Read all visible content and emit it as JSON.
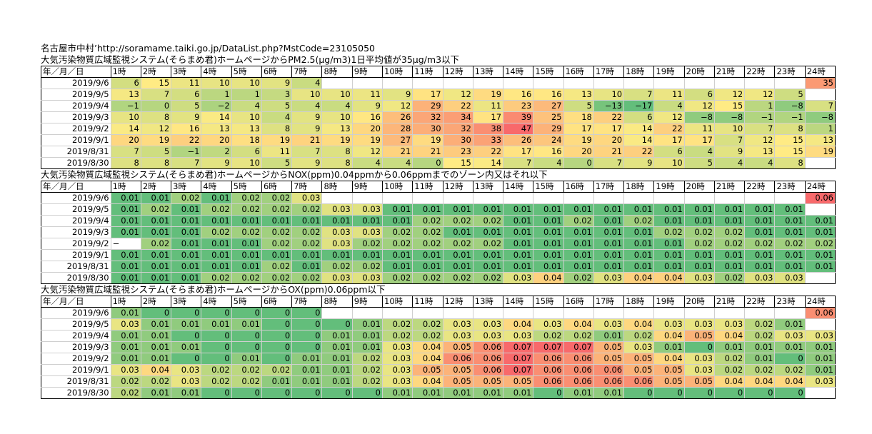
{
  "header": {
    "source_line": "名古屋市中村’http://soramame.taiki.go.jp/DataList.php?MstCode=23105050"
  },
  "hours": [
    "1時",
    "2時",
    "3時",
    "4時",
    "5時",
    "6時",
    "7時",
    "8時",
    "9時",
    "10時",
    "11時",
    "12時",
    "13時",
    "14時",
    "15時",
    "16時",
    "17時",
    "18時",
    "19時",
    "20時",
    "21時",
    "22時",
    "23時",
    "24時"
  ],
  "date_header": "年／月／日",
  "tables": [
    {
      "title": "大気汚染物質広域監視システム(そらまめ君)ホームページからPM2.5(μg/m3)1日平均値が35μg/m3以下",
      "kind": "pm",
      "rows": [
        {
          "date": "2019/9/6",
          "v": [
            "6",
            "15",
            "11",
            "10",
            "10",
            "9",
            "4",
            "",
            "",
            "",
            "",
            "",
            "",
            "",
            "",
            "",
            "",
            "",
            "",
            "",
            "",
            "",
            "",
            "35"
          ]
        },
        {
          "date": "2019/9/5",
          "v": [
            "13",
            "7",
            "6",
            "1",
            "1",
            "3",
            "10",
            "10",
            "11",
            "9",
            "17",
            "12",
            "19",
            "16",
            "16",
            "13",
            "10",
            "7",
            "11",
            "6",
            "12",
            "12",
            "5",
            ""
          ]
        },
        {
          "date": "2019/9/4",
          "v": [
            "−1",
            "0",
            "5",
            "−2",
            "4",
            "5",
            "4",
            "4",
            "9",
            "12",
            "29",
            "22",
            "11",
            "23",
            "27",
            "5",
            "−13",
            "−17",
            "4",
            "12",
            "15",
            "1",
            "−8",
            "7"
          ]
        },
        {
          "date": "2019/9/3",
          "v": [
            "10",
            "8",
            "9",
            "14",
            "10",
            "4",
            "9",
            "10",
            "16",
            "26",
            "32",
            "34",
            "17",
            "39",
            "25",
            "18",
            "22",
            "6",
            "12",
            "−8",
            "−8",
            "−1",
            "−1",
            "−8"
          ]
        },
        {
          "date": "2019/9/2",
          "v": [
            "14",
            "12",
            "16",
            "13",
            "13",
            "8",
            "9",
            "13",
            "20",
            "28",
            "30",
            "32",
            "38",
            "47",
            "29",
            "17",
            "17",
            "14",
            "22",
            "11",
            "10",
            "7",
            "8",
            "1"
          ]
        },
        {
          "date": "2019/9/1",
          "v": [
            "20",
            "19",
            "22",
            "20",
            "18",
            "19",
            "21",
            "19",
            "19",
            "27",
            "19",
            "30",
            "33",
            "26",
            "24",
            "19",
            "20",
            "14",
            "17",
            "17",
            "7",
            "12",
            "15",
            "13"
          ]
        },
        {
          "date": "2019/8/31",
          "v": [
            "7",
            "5",
            "−1",
            "2",
            "6",
            "11",
            "7",
            "8",
            "12",
            "21",
            "21",
            "23",
            "22",
            "17",
            "16",
            "20",
            "21",
            "22",
            "6",
            "4",
            "9",
            "13",
            "15",
            "19"
          ]
        },
        {
          "date": "2019/8/30",
          "v": [
            "8",
            "8",
            "7",
            "9",
            "10",
            "5",
            "9",
            "8",
            "4",
            "4",
            "0",
            "15",
            "14",
            "7",
            "4",
            "0",
            "7",
            "9",
            "10",
            "5",
            "4",
            "4",
            "8",
            ""
          ]
        }
      ]
    },
    {
      "title": "大気汚染物質広域監視システム(そらまめ君)ホームページからNOX(ppm)0.04ppmから0.06ppmまでのゾーン内又はそれ以下",
      "kind": "nox",
      "rows": [
        {
          "date": "2019/9/6",
          "v": [
            "0.01",
            "0.01",
            "0.02",
            "0.01",
            "0.02",
            "0.02",
            "0.03",
            "",
            "",
            "",
            "",
            "",
            "",
            "",
            "",
            "",
            "",
            "",
            "",
            "",
            "",
            "",
            "",
            "0.06"
          ]
        },
        {
          "date": "2019/9/5",
          "v": [
            "0.01",
            "0.02",
            "0.01",
            "0.02",
            "0.02",
            "0.02",
            "0.02",
            "0.03",
            "0.03",
            "0.01",
            "0.01",
            "0.01",
            "0.01",
            "0.01",
            "0.01",
            "0.01",
            "0.01",
            "0.01",
            "0.01",
            "0.01",
            "0.01",
            "0.01",
            "0.01",
            ""
          ]
        },
        {
          "date": "2019/9/4",
          "v": [
            "0.01",
            "0.01",
            "0.01",
            "0.01",
            "0.01",
            "0.01",
            "0.01",
            "0.01",
            "0.01",
            "0.01",
            "0.02",
            "0.02",
            "0.02",
            "0.01",
            "0.01",
            "0.02",
            "0.01",
            "0.02",
            "0.01",
            "0.01",
            "0.01",
            "0.01",
            "0.01",
            "0.01"
          ]
        },
        {
          "date": "2019/9/3",
          "v": [
            "0.01",
            "0.01",
            "0.01",
            "0.02",
            "0.02",
            "0.02",
            "0.02",
            "0.03",
            "0.03",
            "0.02",
            "0.02",
            "0.01",
            "0.01",
            "0.01",
            "0.01",
            "0.01",
            "0.01",
            "0.01",
            "0.02",
            "0.02",
            "0.02",
            "0.01",
            "0.01",
            "0.01"
          ]
        },
        {
          "date": "2019/9/2",
          "v": [
            "−",
            "0.02",
            "0.01",
            "0.01",
            "0.01",
            "0.02",
            "0.02",
            "0.03",
            "0.02",
            "0.02",
            "0.02",
            "0.02",
            "0.02",
            "0.01",
            "0.01",
            "0.01",
            "0.01",
            "0.01",
            "0.01",
            "0.02",
            "0.02",
            "0.02",
            "0.02",
            "0.02"
          ]
        },
        {
          "date": "2019/9/1",
          "v": [
            "0.01",
            "0.01",
            "0.01",
            "0.01",
            "0.01",
            "0.01",
            "0.01",
            "0.01",
            "0.01",
            "0.01",
            "0.01",
            "0.01",
            "0.01",
            "0.01",
            "0.01",
            "0.01",
            "0.01",
            "0.01",
            "0.01",
            "0.01",
            "0.01",
            "0.01",
            "0.01",
            "0.01"
          ]
        },
        {
          "date": "2019/8/31",
          "v": [
            "0.01",
            "0.01",
            "0.01",
            "0.01",
            "0.01",
            "0.02",
            "0.01",
            "0.02",
            "0.02",
            "0.01",
            "0.01",
            "0.01",
            "0.01",
            "0.01",
            "0.01",
            "0.01",
            "0.01",
            "0.01",
            "0.01",
            "0.01",
            "0.01",
            "0.01",
            "0.01",
            "0.01"
          ]
        },
        {
          "date": "2019/8/30",
          "v": [
            "0.01",
            "0.01",
            "0.01",
            "0.02",
            "0.02",
            "0.02",
            "0.02",
            "0.03",
            "0.03",
            "0.02",
            "0.02",
            "0.02",
            "0.02",
            "0.03",
            "0.04",
            "0.02",
            "0.03",
            "0.04",
            "0.04",
            "0.03",
            "0.02",
            "0.03",
            "0.03",
            ""
          ]
        }
      ]
    },
    {
      "title": "大気汚染物質広域監視システム(そらまめ君)ホームページからOX(ppm)0.06ppm以下",
      "kind": "ox",
      "rows": [
        {
          "date": "2019/9/6",
          "v": [
            "0.01",
            "0",
            "0",
            "0",
            "0",
            "0",
            "0",
            "",
            "",
            "",
            "",
            "",
            "",
            "",
            "",
            "",
            "",
            "",
            "",
            "",
            "",
            "",
            "",
            "0.06"
          ]
        },
        {
          "date": "2019/9/5",
          "v": [
            "0.03",
            "0.01",
            "0.01",
            "0.01",
            "0.01",
            "0",
            "0",
            "0",
            "0.01",
            "0.02",
            "0.02",
            "0.03",
            "0.03",
            "0.04",
            "0.03",
            "0.04",
            "0.03",
            "0.04",
            "0.03",
            "0.03",
            "0.03",
            "0.02",
            "0.01",
            ""
          ]
        },
        {
          "date": "2019/9/4",
          "v": [
            "0.01",
            "0.01",
            "0",
            "0",
            "0",
            "0",
            "0",
            "0.01",
            "0.01",
            "0.02",
            "0.02",
            "0.03",
            "0.03",
            "0.03",
            "0.02",
            "0.02",
            "0.01",
            "0.02",
            "0.04",
            "0.05",
            "0.04",
            "0.02",
            "0.03",
            "0.03"
          ]
        },
        {
          "date": "2019/9/3",
          "v": [
            "0.01",
            "0.01",
            "0.01",
            "0",
            "0",
            "0",
            "0",
            "0.01",
            "0.01",
            "0.03",
            "0.04",
            "0.05",
            "0.06",
            "0.07",
            "0.07",
            "0.07",
            "0.05",
            "0.03",
            "0.01",
            "0",
            "0.01",
            "0.01",
            "0.01",
            "0.01"
          ]
        },
        {
          "date": "2019/9/2",
          "v": [
            "0.01",
            "0.01",
            "0",
            "0",
            "0.01",
            "0",
            "0.01",
            "0.01",
            "0.02",
            "0.03",
            "0.04",
            "0.06",
            "0.06",
            "0.07",
            "0.06",
            "0.06",
            "0.05",
            "0.05",
            "0.04",
            "0.03",
            "0.02",
            "0.01",
            "0",
            "0.01"
          ]
        },
        {
          "date": "2019/9/1",
          "v": [
            "0.03",
            "0.04",
            "0.03",
            "0.02",
            "0.02",
            "0.02",
            "0.01",
            "0.01",
            "0.02",
            "0.03",
            "0.05",
            "0.05",
            "0.06",
            "0.07",
            "0.06",
            "0.06",
            "0.06",
            "0.05",
            "0.05",
            "0.03",
            "0.02",
            "0.02",
            "0.02",
            "0.01"
          ]
        },
        {
          "date": "2019/8/31",
          "v": [
            "0.02",
            "0.02",
            "0.03",
            "0.02",
            "0.02",
            "0.01",
            "0.01",
            "0.01",
            "0.02",
            "0.03",
            "0.04",
            "0.05",
            "0.05",
            "0.05",
            "0.06",
            "0.06",
            "0.06",
            "0.06",
            "0.05",
            "0.05",
            "0.04",
            "0.04",
            "0.04",
            "0.03"
          ]
        },
        {
          "date": "2019/8/30",
          "v": [
            "0.02",
            "0.01",
            "0.01",
            "0",
            "0",
            "0",
            "0",
            "0",
            "0",
            "0.01",
            "0.01",
            "0.01",
            "0.01",
            "0.01",
            "0",
            "0.01",
            "0.01",
            "0",
            "0",
            "0",
            "0",
            "0",
            "0",
            ""
          ]
        }
      ]
    }
  ]
}
